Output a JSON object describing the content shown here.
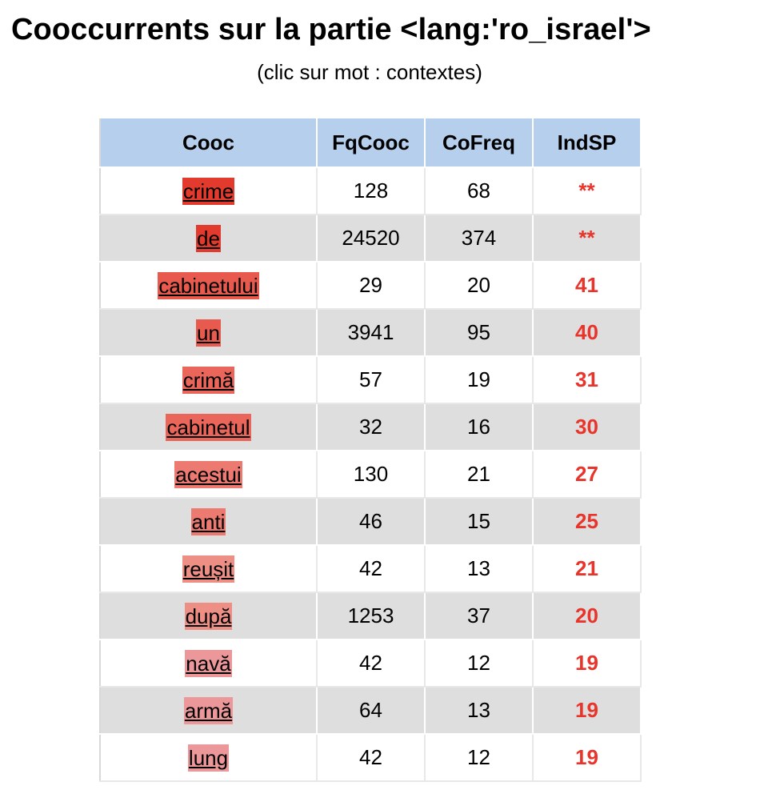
{
  "header": {
    "title": "Cooccurrents sur la partie <lang:'ro_israel'>",
    "subtitle": "(clic sur mot : contextes)"
  },
  "table": {
    "columns": [
      "Cooc",
      "FqCooc",
      "CoFreq",
      "IndSP"
    ],
    "rows": [
      {
        "word": "crime",
        "fq": "128",
        "cofreq": "68",
        "ind": "**",
        "color": "#e23a2c"
      },
      {
        "word": "de",
        "fq": "24520",
        "cofreq": "374",
        "ind": "**",
        "color": "#e23a2c"
      },
      {
        "word": "cabinetului",
        "fq": "29",
        "cofreq": "20",
        "ind": "41",
        "color": "#e85a4e"
      },
      {
        "word": "un",
        "fq": "3941",
        "cofreq": "95",
        "ind": "40",
        "color": "#e85a4e"
      },
      {
        "word": "crimă",
        "fq": "57",
        "cofreq": "19",
        "ind": "31",
        "color": "#ea665b"
      },
      {
        "word": "cabinetul",
        "fq": "32",
        "cofreq": "16",
        "ind": "30",
        "color": "#ea665b"
      },
      {
        "word": "acestui",
        "fq": "130",
        "cofreq": "21",
        "ind": "27",
        "color": "#ec7a70"
      },
      {
        "word": "anti",
        "fq": "46",
        "cofreq": "15",
        "ind": "25",
        "color": "#ec7a70"
      },
      {
        "word": "reușit",
        "fq": "42",
        "cofreq": "13",
        "ind": "21",
        "color": "#ee8f86"
      },
      {
        "word": "după",
        "fq": "1253",
        "cofreq": "37",
        "ind": "20",
        "color": "#ee8f86"
      },
      {
        "word": "navă",
        "fq": "42",
        "cofreq": "12",
        "ind": "19",
        "color": "#ec979a"
      },
      {
        "word": "armă",
        "fq": "64",
        "cofreq": "13",
        "ind": "19",
        "color": "#ec979a"
      },
      {
        "word": "lung",
        "fq": "42",
        "cofreq": "12",
        "ind": "19",
        "color": "#ec979a"
      }
    ]
  }
}
